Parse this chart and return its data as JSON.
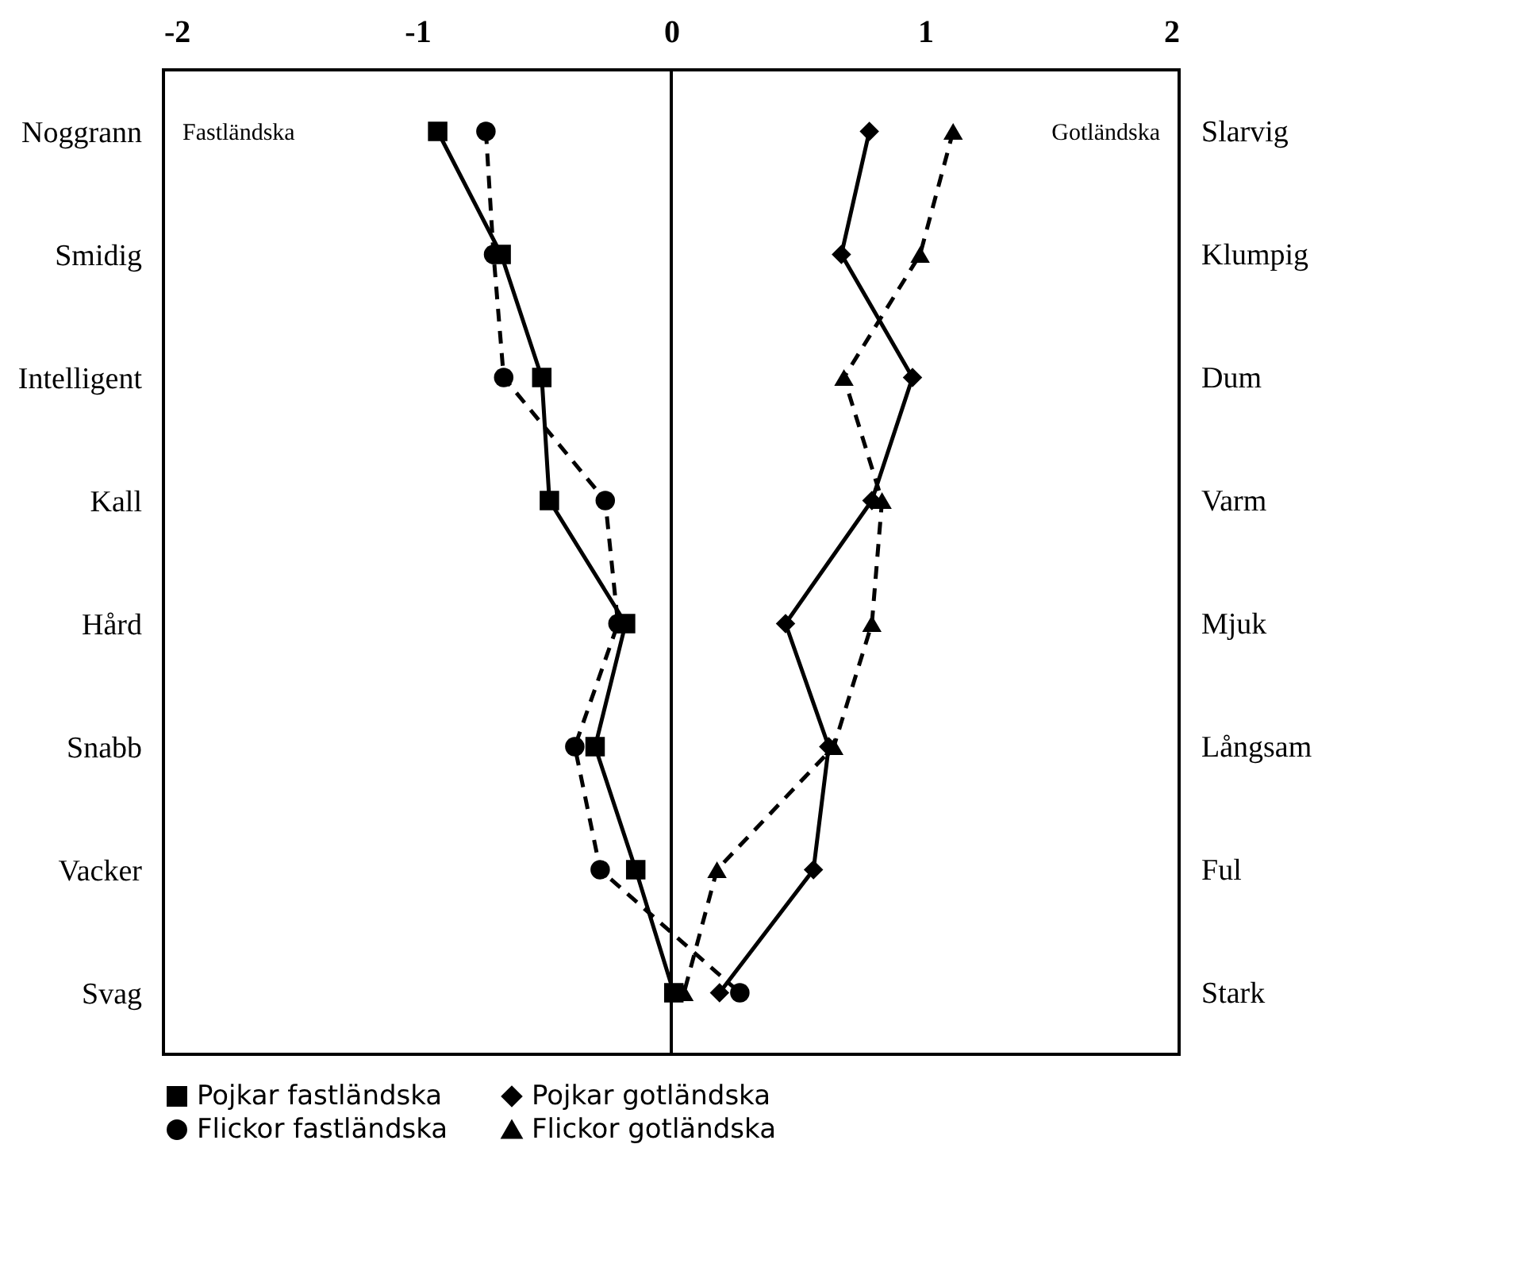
{
  "chart_data": {
    "type": "line",
    "orientation": "horizontal",
    "categories": [
      "Noggrann",
      "Smidig",
      "Intelligent",
      "Kall",
      "Hård",
      "Snabb",
      "Vacker",
      "Svag"
    ],
    "y2_categories": [
      "Slarvig",
      "Klumpig",
      "Dum",
      "Varm",
      "Mjuk",
      "Långsam",
      "Ful",
      "Stark"
    ],
    "xlim": [
      -2,
      2
    ],
    "xticks": [
      -2,
      -1,
      0,
      1,
      2
    ],
    "grid": false,
    "legend": "bottom",
    "ref_lines": [
      {
        "axis": "x",
        "value": 0
      }
    ],
    "annotations": [
      "Fastländska",
      "Gotländska"
    ],
    "series": [
      {
        "name": "Pojkar fastländska",
        "color": "#000000",
        "marker": "square",
        "line_style": "solid",
        "values": [
          -0.92,
          -0.67,
          -0.51,
          -0.48,
          -0.18,
          -0.3,
          -0.14,
          0.01
        ]
      },
      {
        "name": "Pojkar gotländska",
        "color": "#000000",
        "marker": "diamond",
        "line_style": "solid",
        "values": [
          0.78,
          0.67,
          0.95,
          0.79,
          0.45,
          0.62,
          0.56,
          0.19
        ]
      },
      {
        "name": "Flickor fastländska",
        "color": "#000000",
        "marker": "circle",
        "line_style": "dashed",
        "values": [
          -0.73,
          -0.7,
          -0.66,
          -0.26,
          -0.21,
          -0.38,
          -0.28,
          0.27
        ]
      },
      {
        "name": "Flickor gotländska",
        "color": "#000000",
        "marker": "triangle",
        "line_style": "dashed",
        "values": [
          1.11,
          0.98,
          0.68,
          0.83,
          0.79,
          0.64,
          0.18,
          0.05
        ]
      }
    ]
  }
}
